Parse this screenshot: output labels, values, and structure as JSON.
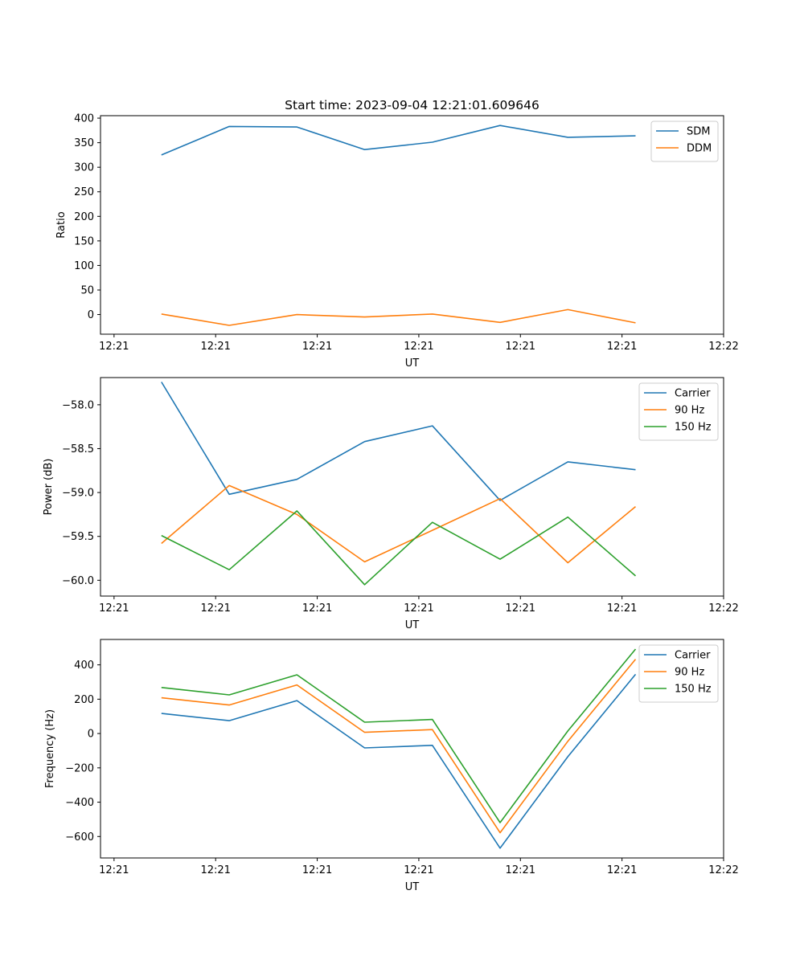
{
  "chart_data": [
    {
      "type": "line",
      "title": "Start time: 2023-09-04 12:21:01.609646",
      "xlabel": "UT",
      "ylabel": "Ratio",
      "xlim": [
        0,
        9.2
      ],
      "ylim": [
        -40,
        405
      ],
      "xticks": [
        0.2,
        1.7,
        3.2,
        4.7,
        6.2,
        7.7,
        9.2
      ],
      "xtick_labels": [
        "12:21",
        "12:21",
        "12:21",
        "12:21",
        "12:21",
        "12:21",
        "12:22"
      ],
      "yticks": [
        0,
        50,
        100,
        150,
        200,
        250,
        300,
        350,
        400
      ],
      "ytick_labels": [
        "0",
        "50",
        "100",
        "150",
        "200",
        "250",
        "300",
        "350",
        "400"
      ],
      "legend_position": "top-right",
      "x": [
        0.9,
        1.9,
        2.9,
        3.9,
        4.9,
        5.9,
        6.9,
        7.9
      ],
      "series": [
        {
          "name": "SDM",
          "color": "#1f77b4",
          "values": [
            325,
            383,
            382,
            336,
            351,
            385,
            361,
            364
          ]
        },
        {
          "name": "DDM",
          "color": "#ff7f0e",
          "values": [
            1,
            -22,
            0,
            -5,
            1,
            -16,
            10,
            -17
          ]
        }
      ]
    },
    {
      "type": "line",
      "title": "",
      "xlabel": "UT",
      "ylabel": "Power (dB)",
      "xlim": [
        0,
        9.2
      ],
      "ylim": [
        -60.18,
        -57.69
      ],
      "xticks": [
        0.2,
        1.7,
        3.2,
        4.7,
        6.2,
        7.7,
        9.2
      ],
      "xtick_labels": [
        "12:21",
        "12:21",
        "12:21",
        "12:21",
        "12:21",
        "12:21",
        "12:22"
      ],
      "yticks": [
        -58.0,
        -58.5,
        -59.0,
        -59.5,
        -60.0
      ],
      "ytick_labels": [
        "−58.0",
        "−58.5",
        "−59.0",
        "−59.5",
        "−60.0"
      ],
      "legend_position": "top-right",
      "x": [
        0.9,
        1.9,
        2.9,
        3.9,
        4.9,
        5.9,
        6.9,
        7.9
      ],
      "series": [
        {
          "name": "Carrier",
          "color": "#1f77b4",
          "values": [
            -57.74,
            -59.02,
            -58.85,
            -58.42,
            -58.24,
            -59.09,
            -58.65,
            -58.74
          ]
        },
        {
          "name": "90 Hz",
          "color": "#ff7f0e",
          "values": [
            -59.58,
            -58.92,
            -59.25,
            -59.79,
            -59.43,
            -59.07,
            -59.8,
            -59.16
          ]
        },
        {
          "name": "150 Hz",
          "color": "#2ca02c",
          "values": [
            -59.49,
            -59.88,
            -59.21,
            -60.05,
            -59.34,
            -59.76,
            -59.28,
            -59.95
          ]
        }
      ]
    },
    {
      "type": "line",
      "title": "",
      "xlabel": "UT",
      "ylabel": "Frequency (Hz)",
      "xlim": [
        0,
        9.2
      ],
      "ylim": [
        -725,
        548
      ],
      "xticks": [
        0.2,
        1.7,
        3.2,
        4.7,
        6.2,
        7.7,
        9.2
      ],
      "xtick_labels": [
        "12:21",
        "12:21",
        "12:21",
        "12:21",
        "12:21",
        "12:21",
        "12:22"
      ],
      "yticks": [
        400,
        200,
        0,
        -200,
        -400,
        -600
      ],
      "ytick_labels": [
        "400",
        "200",
        "0",
        "−200",
        "−400",
        "−600"
      ],
      "legend_position": "top-right",
      "x": [
        0.9,
        1.9,
        2.9,
        3.9,
        4.9,
        5.9,
        6.9,
        7.9
      ],
      "series": [
        {
          "name": "Carrier",
          "color": "#1f77b4",
          "values": [
            117,
            75,
            192,
            -84,
            -69,
            -668,
            -135,
            345
          ]
        },
        {
          "name": "90 Hz",
          "color": "#ff7f0e",
          "values": [
            208,
            166,
            283,
            7,
            23,
            -578,
            -45,
            433
          ]
        },
        {
          "name": "150 Hz",
          "color": "#2ca02c",
          "values": [
            268,
            225,
            342,
            66,
            82,
            -519,
            15,
            492
          ]
        }
      ]
    }
  ]
}
